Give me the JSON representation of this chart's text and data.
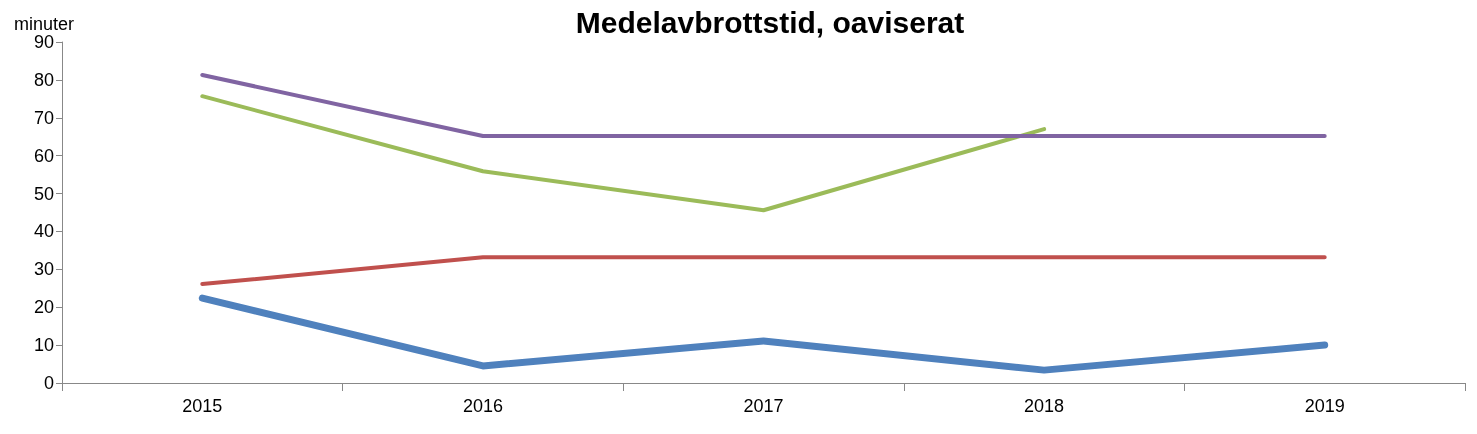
{
  "chart_data": {
    "type": "line",
    "title": "Medelavbrottstid, oaviserat",
    "ylabel": "minuter",
    "categories": [
      "2015",
      "2016",
      "2017",
      "2018",
      "2019"
    ],
    "series": [
      {
        "color": "#4f81bd",
        "values": [
          22.4,
          4.5,
          11.1,
          3.4,
          10.0
        ]
      },
      {
        "color": "#c0504d",
        "values": [
          26.1,
          33.2,
          33.2,
          33.2,
          33.2
        ]
      },
      {
        "color": "#9bbb59",
        "values": [
          75.7,
          55.9,
          45.6,
          67.0,
          null
        ]
      },
      {
        "color": "#8064a2",
        "values": [
          81.3,
          65.2,
          65.2,
          65.2,
          65.2
        ]
      }
    ],
    "ylim": [
      0,
      90
    ],
    "yticks": [
      0,
      10,
      20,
      30,
      40,
      50,
      60,
      70,
      80,
      90
    ],
    "grid": false,
    "marker": "none",
    "line_style": "solid"
  }
}
